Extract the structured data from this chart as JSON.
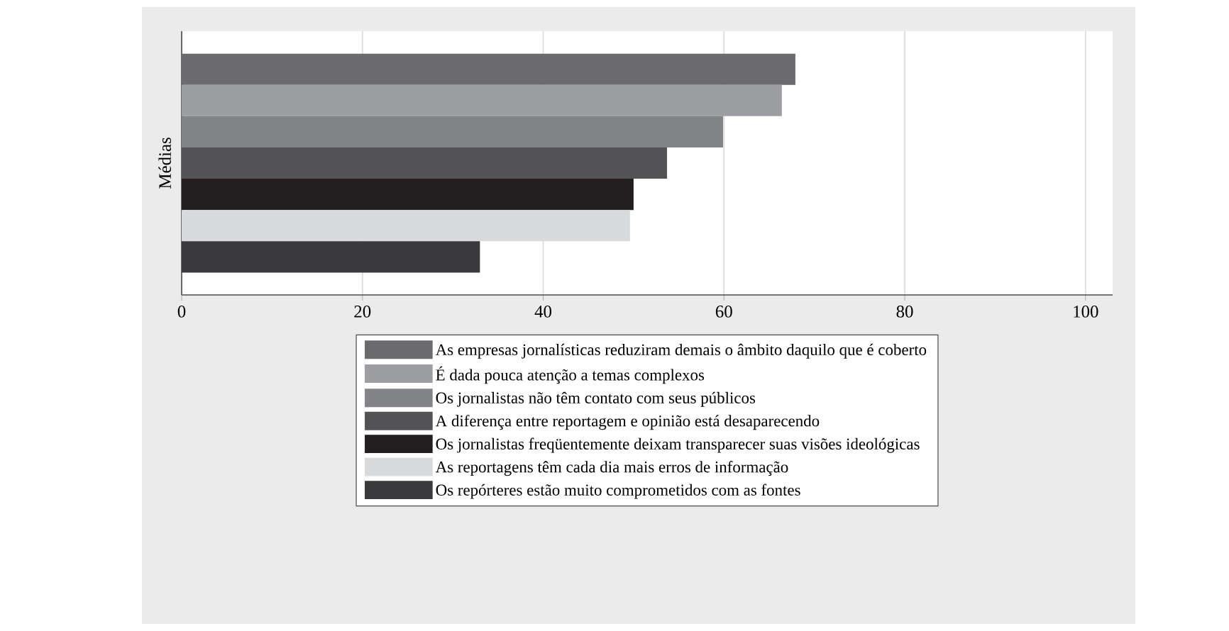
{
  "chart_data": {
    "type": "bar",
    "orientation": "horizontal",
    "ylabel": "Médias",
    "categories": [
      null
    ],
    "series": [
      {
        "name": "As empresas jornalísticas reduziram demais o âmbito daquilo que é coberto",
        "color": "#6b6b6d",
        "values": [
          67.9
        ]
      },
      {
        "name": "É dada pouca atenção a temas complexos",
        "color": "#9d9ea1",
        "values": [
          66.4
        ]
      },
      {
        "name": "Os jornalistas não têm contato com seus públicos",
        "color": "#838487",
        "values": [
          59.9
        ]
      },
      {
        "name": "A diferença entre reportagem e opinião está desaparecendo",
        "color": "#535356",
        "values": [
          53.7
        ]
      },
      {
        "name": "Os jornalistas freqüentemente deixam transparecer suas visões ideológicas",
        "color": "#231f20",
        "values": [
          50.0
        ]
      },
      {
        "name": "As reportagens têm cada dia mais erros de informação",
        "color": "#d9dadc",
        "values": [
          49.6
        ]
      },
      {
        "name": "Os repórteres estão muito comprometidos com as fontes",
        "color": "#3a3a3c",
        "values": [
          33.0
        ]
      }
    ],
    "xlim": [
      0,
      103
    ],
    "xticks": [
      0,
      20,
      40,
      60,
      80,
      100
    ],
    "grid": "x",
    "legend": "bottom"
  }
}
